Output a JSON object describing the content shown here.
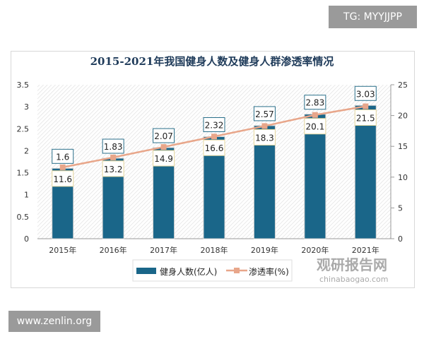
{
  "watermarks": {
    "top_right": "TG: MYYJJPP",
    "bottom_left": "www.zenlin.org",
    "logo_cn": "观研报告网",
    "logo_en": "chinabaogao.com"
  },
  "chart_data": {
    "type": "bar+line",
    "title": "2015-2021年我国健身人数及健身人群渗透率情况",
    "categories": [
      "2015年",
      "2016年",
      "2017年",
      "2018年",
      "2019年",
      "2020年",
      "2021年"
    ],
    "series": [
      {
        "name": "健身人数(亿人)",
        "type": "bar",
        "axis": "left",
        "color": "#1a6689",
        "values": [
          1.6,
          1.83,
          2.07,
          2.32,
          2.57,
          2.83,
          3.03
        ],
        "labels": [
          "1.6",
          "1.83",
          "2.07",
          "2.32",
          "2.57",
          "2.83",
          "3.03"
        ]
      },
      {
        "name": "渗透率(%)",
        "type": "line",
        "axis": "right",
        "color": "#e8a68a",
        "values": [
          11.6,
          13.2,
          14.9,
          16.6,
          18.3,
          20.1,
          21.5
        ],
        "labels": [
          "11.6",
          "13.2",
          "14.9",
          "16.6",
          "18.3",
          "20.1",
          "21.5"
        ]
      }
    ],
    "left_axis": {
      "ylim": [
        0,
        3.5
      ],
      "ticks": [
        "0",
        "0.5",
        "1",
        "1.5",
        "2",
        "2.5",
        "3",
        "3.5"
      ]
    },
    "right_axis": {
      "ylim": [
        0,
        25
      ],
      "ticks": [
        "0",
        "5",
        "10",
        "15",
        "20",
        "25"
      ]
    },
    "legend": "bottom",
    "grid": false
  }
}
